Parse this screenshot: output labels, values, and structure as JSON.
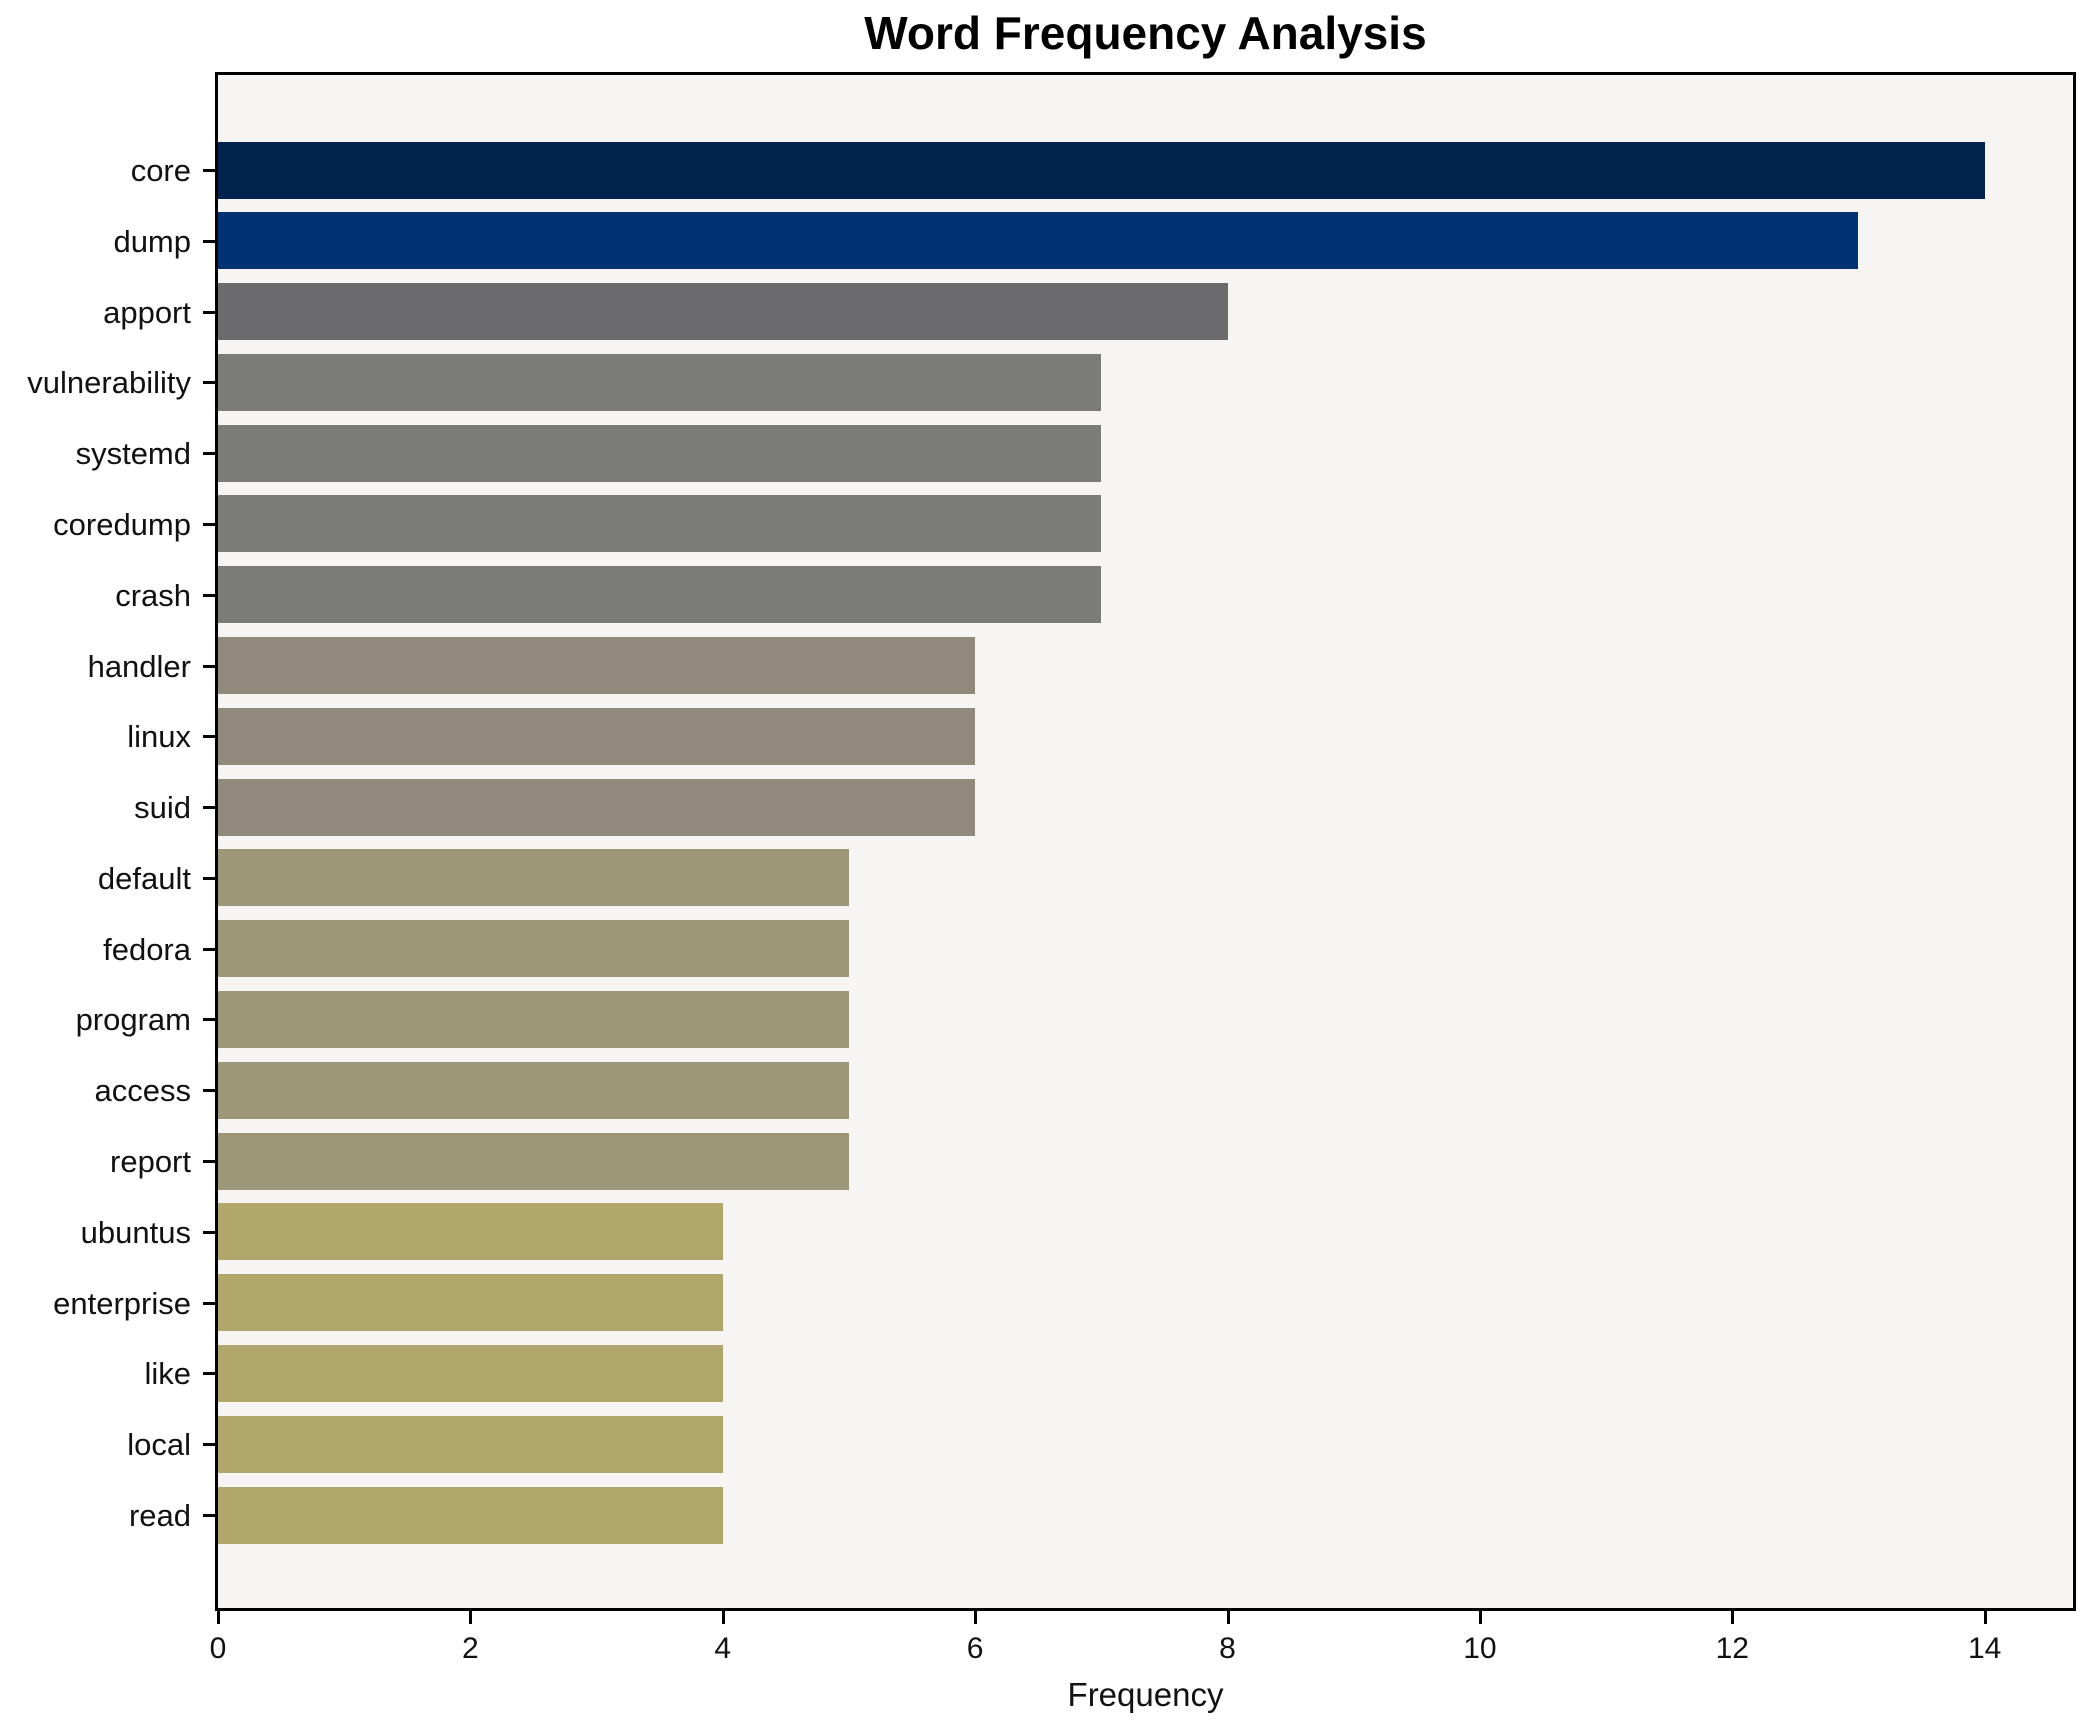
{
  "chart_data": {
    "type": "bar",
    "orientation": "horizontal",
    "title": "Word Frequency Analysis",
    "xlabel": "Frequency",
    "ylabel": "",
    "categories": [
      "core",
      "dump",
      "apport",
      "vulnerability",
      "systemd",
      "coredump",
      "crash",
      "handler",
      "linux",
      "suid",
      "default",
      "fedora",
      "program",
      "access",
      "report",
      "ubuntus",
      "enterprise",
      "like",
      "local",
      "read"
    ],
    "values": [
      14,
      13,
      8,
      7,
      7,
      7,
      7,
      6,
      6,
      6,
      5,
      5,
      5,
      5,
      5,
      4,
      4,
      4,
      4,
      4
    ],
    "bar_colors": [
      "#01234d",
      "#013271",
      "#6b6b6e",
      "#7b7b78",
      "#7b7b78",
      "#7b7b78",
      "#7b7b78",
      "#8f8a7b",
      "#8f8a7b",
      "#8f8a7b",
      "#9d9678",
      "#9d9678",
      "#9d9678",
      "#9d9678",
      "#9d9678",
      "#b1a76c",
      "#b1a76c",
      "#b1a76c",
      "#b1a76c",
      "#b1a76c"
    ],
    "x_ticks": [
      0,
      2,
      4,
      6,
      8,
      10,
      12,
      14
    ],
    "xlim": [
      0,
      14.7
    ],
    "grid": false,
    "legend": "none",
    "plot_background": "#f6f5f4",
    "axis_color": "#000000",
    "text_color": "#111111"
  }
}
